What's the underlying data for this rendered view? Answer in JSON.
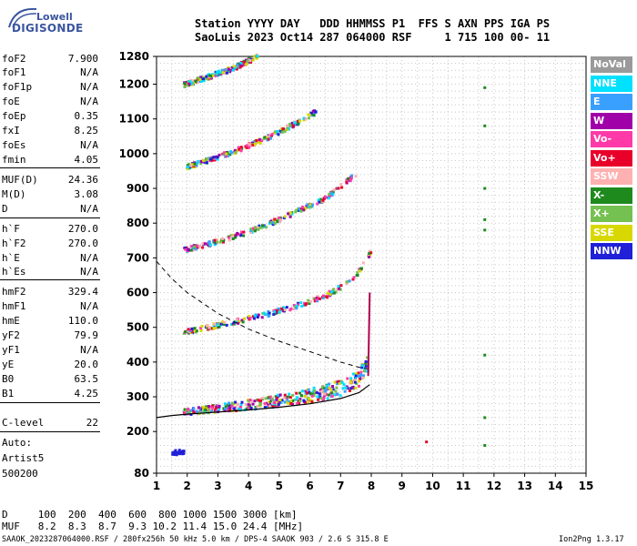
{
  "logo": {
    "line1": "Lowell",
    "line2": "DIGISONDE"
  },
  "header": {
    "row1": "Station YYYY DAY   DDD HHMMSS P1  FFS S AXN PPS IGA PS",
    "row2": "SaoLuis 2023 Oct14 287 064000 RSF     1 715 100 00- 11"
  },
  "params": [
    {
      "name": "foF2",
      "value": "7.900"
    },
    {
      "name": "foF1",
      "value": "N/A"
    },
    {
      "name": "foF1p",
      "value": "N/A"
    },
    {
      "name": "foE",
      "value": "N/A"
    },
    {
      "name": "foEp",
      "value": "0.35"
    },
    {
      "name": "fxI",
      "value": "8.25"
    },
    {
      "name": "foEs",
      "value": "N/A"
    },
    {
      "name": "fmin",
      "value": "4.05"
    },
    {
      "name": "MUF(D)",
      "value": "24.36"
    },
    {
      "name": "M(D)",
      "value": "3.08"
    },
    {
      "name": "D",
      "value": "N/A"
    },
    {
      "name": "h`F",
      "value": "270.0"
    },
    {
      "name": "h`F2",
      "value": "270.0"
    },
    {
      "name": "h`E",
      "value": "N/A"
    },
    {
      "name": "h`Es",
      "value": "N/A"
    },
    {
      "name": "hmF2",
      "value": "329.4"
    },
    {
      "name": "hmF1",
      "value": "N/A"
    },
    {
      "name": "hmE",
      "value": "110.0"
    },
    {
      "name": "yF2",
      "value": "79.9"
    },
    {
      "name": "yF1",
      "value": "N/A"
    },
    {
      "name": "yE",
      "value": "20.0"
    },
    {
      "name": "B0",
      "value": "63.5"
    },
    {
      "name": "B1",
      "value": "4.25"
    },
    {
      "name": "C-level",
      "value": "22"
    }
  ],
  "auto": {
    "line1": "Auto:",
    "line2": "Artist5",
    "line3": "500200"
  },
  "legend": [
    {
      "label": "NoVal",
      "color": "#9a9a9a"
    },
    {
      "label": "NNE",
      "color": "#00e0ff"
    },
    {
      "label": "E",
      "color": "#3aa0ff"
    },
    {
      "label": "W",
      "color": "#a000a8"
    },
    {
      "label": "Vo-",
      "color": "#ff3aa8"
    },
    {
      "label": "Vo+",
      "color": "#e8002a"
    },
    {
      "label": "SSW",
      "color": "#ffb0b0"
    },
    {
      "label": "X-",
      "color": "#1e8a1e"
    },
    {
      "label": "X+",
      "color": "#74c050"
    },
    {
      "label": "SSE",
      "color": "#d8d800"
    },
    {
      "label": "NNW",
      "color": "#2020d8"
    }
  ],
  "muf_table": {
    "d_row": "D     100  200  400  600  800 1000 1500 3000 [km]",
    "muf_row": "MUF   8.2  8.3  8.7  9.3 10.2 11.4 15.0 24.4 [MHz]"
  },
  "footer": {
    "left": "SAAOK_2023287064000.RSF / 280fx256h 50 kHz 5.0 km / DPS-4 SAAOK 903 / 2.6 S 315.8 E",
    "right": "Ion2Png 1.3.17"
  },
  "chart_data": {
    "type": "scatter",
    "xlim": [
      1,
      15
    ],
    "ylim": [
      80,
      1280
    ],
    "x_ticks": [
      1,
      2,
      3,
      4,
      5,
      6,
      7,
      8,
      9,
      10,
      11,
      12,
      13,
      14,
      15
    ],
    "y_ticks": [
      80,
      200,
      300,
      400,
      500,
      600,
      700,
      800,
      900,
      1000,
      1100,
      1200,
      1280
    ],
    "grid": true,
    "traces": [
      {
        "x": [
          1.0,
          1.5,
          2.0,
          3.0,
          4.0,
          5.0,
          6.0,
          7.0,
          7.6,
          7.95
        ],
        "y": [
          240,
          246,
          250,
          256,
          262,
          270,
          280,
          295,
          312,
          335
        ]
      },
      {
        "x": [
          1.0,
          1.5,
          2.0,
          3.0,
          4.0,
          5.0,
          6.0,
          7.0,
          7.6,
          7.9
        ],
        "y": [
          690,
          640,
          600,
          540,
          495,
          460,
          430,
          400,
          385,
          380
        ]
      },
      {
        "x": [
          7.9,
          7.95
        ],
        "y": [
          360,
          600
        ]
      }
    ],
    "echo_traces": [
      {
        "x": [
          1.9,
          2.5,
          3.5,
          4.5,
          5.5,
          6.5,
          7.2,
          7.6,
          7.9
        ],
        "y": [
          255,
          262,
          272,
          282,
          295,
          312,
          330,
          355,
          400
        ]
      },
      {
        "x": [
          1.9,
          2.5,
          3.5,
          4.5,
          5.5,
          6.5,
          7.2,
          7.6,
          8.0
        ],
        "y": [
          485,
          497,
          515,
          535,
          560,
          590,
          625,
          660,
          720
        ]
      },
      {
        "x": [
          1.9,
          2.5,
          3.5,
          4.5,
          5.5,
          6.5,
          7.0,
          7.5
        ],
        "y": [
          722,
          735,
          760,
          790,
          830,
          870,
          905,
          940
        ]
      },
      {
        "x": [
          1.9,
          2.5,
          3.5,
          4.5,
          5.5,
          6.2
        ],
        "y": [
          960,
          975,
          1005,
          1040,
          1085,
          1120
        ]
      },
      {
        "x": [
          1.9,
          2.5,
          3.5,
          4.3
        ],
        "y": [
          1198,
          1215,
          1245,
          1280
        ]
      },
      {
        "x": [
          1.5,
          1.95
        ],
        "y": [
          140,
          140
        ]
      }
    ]
  }
}
